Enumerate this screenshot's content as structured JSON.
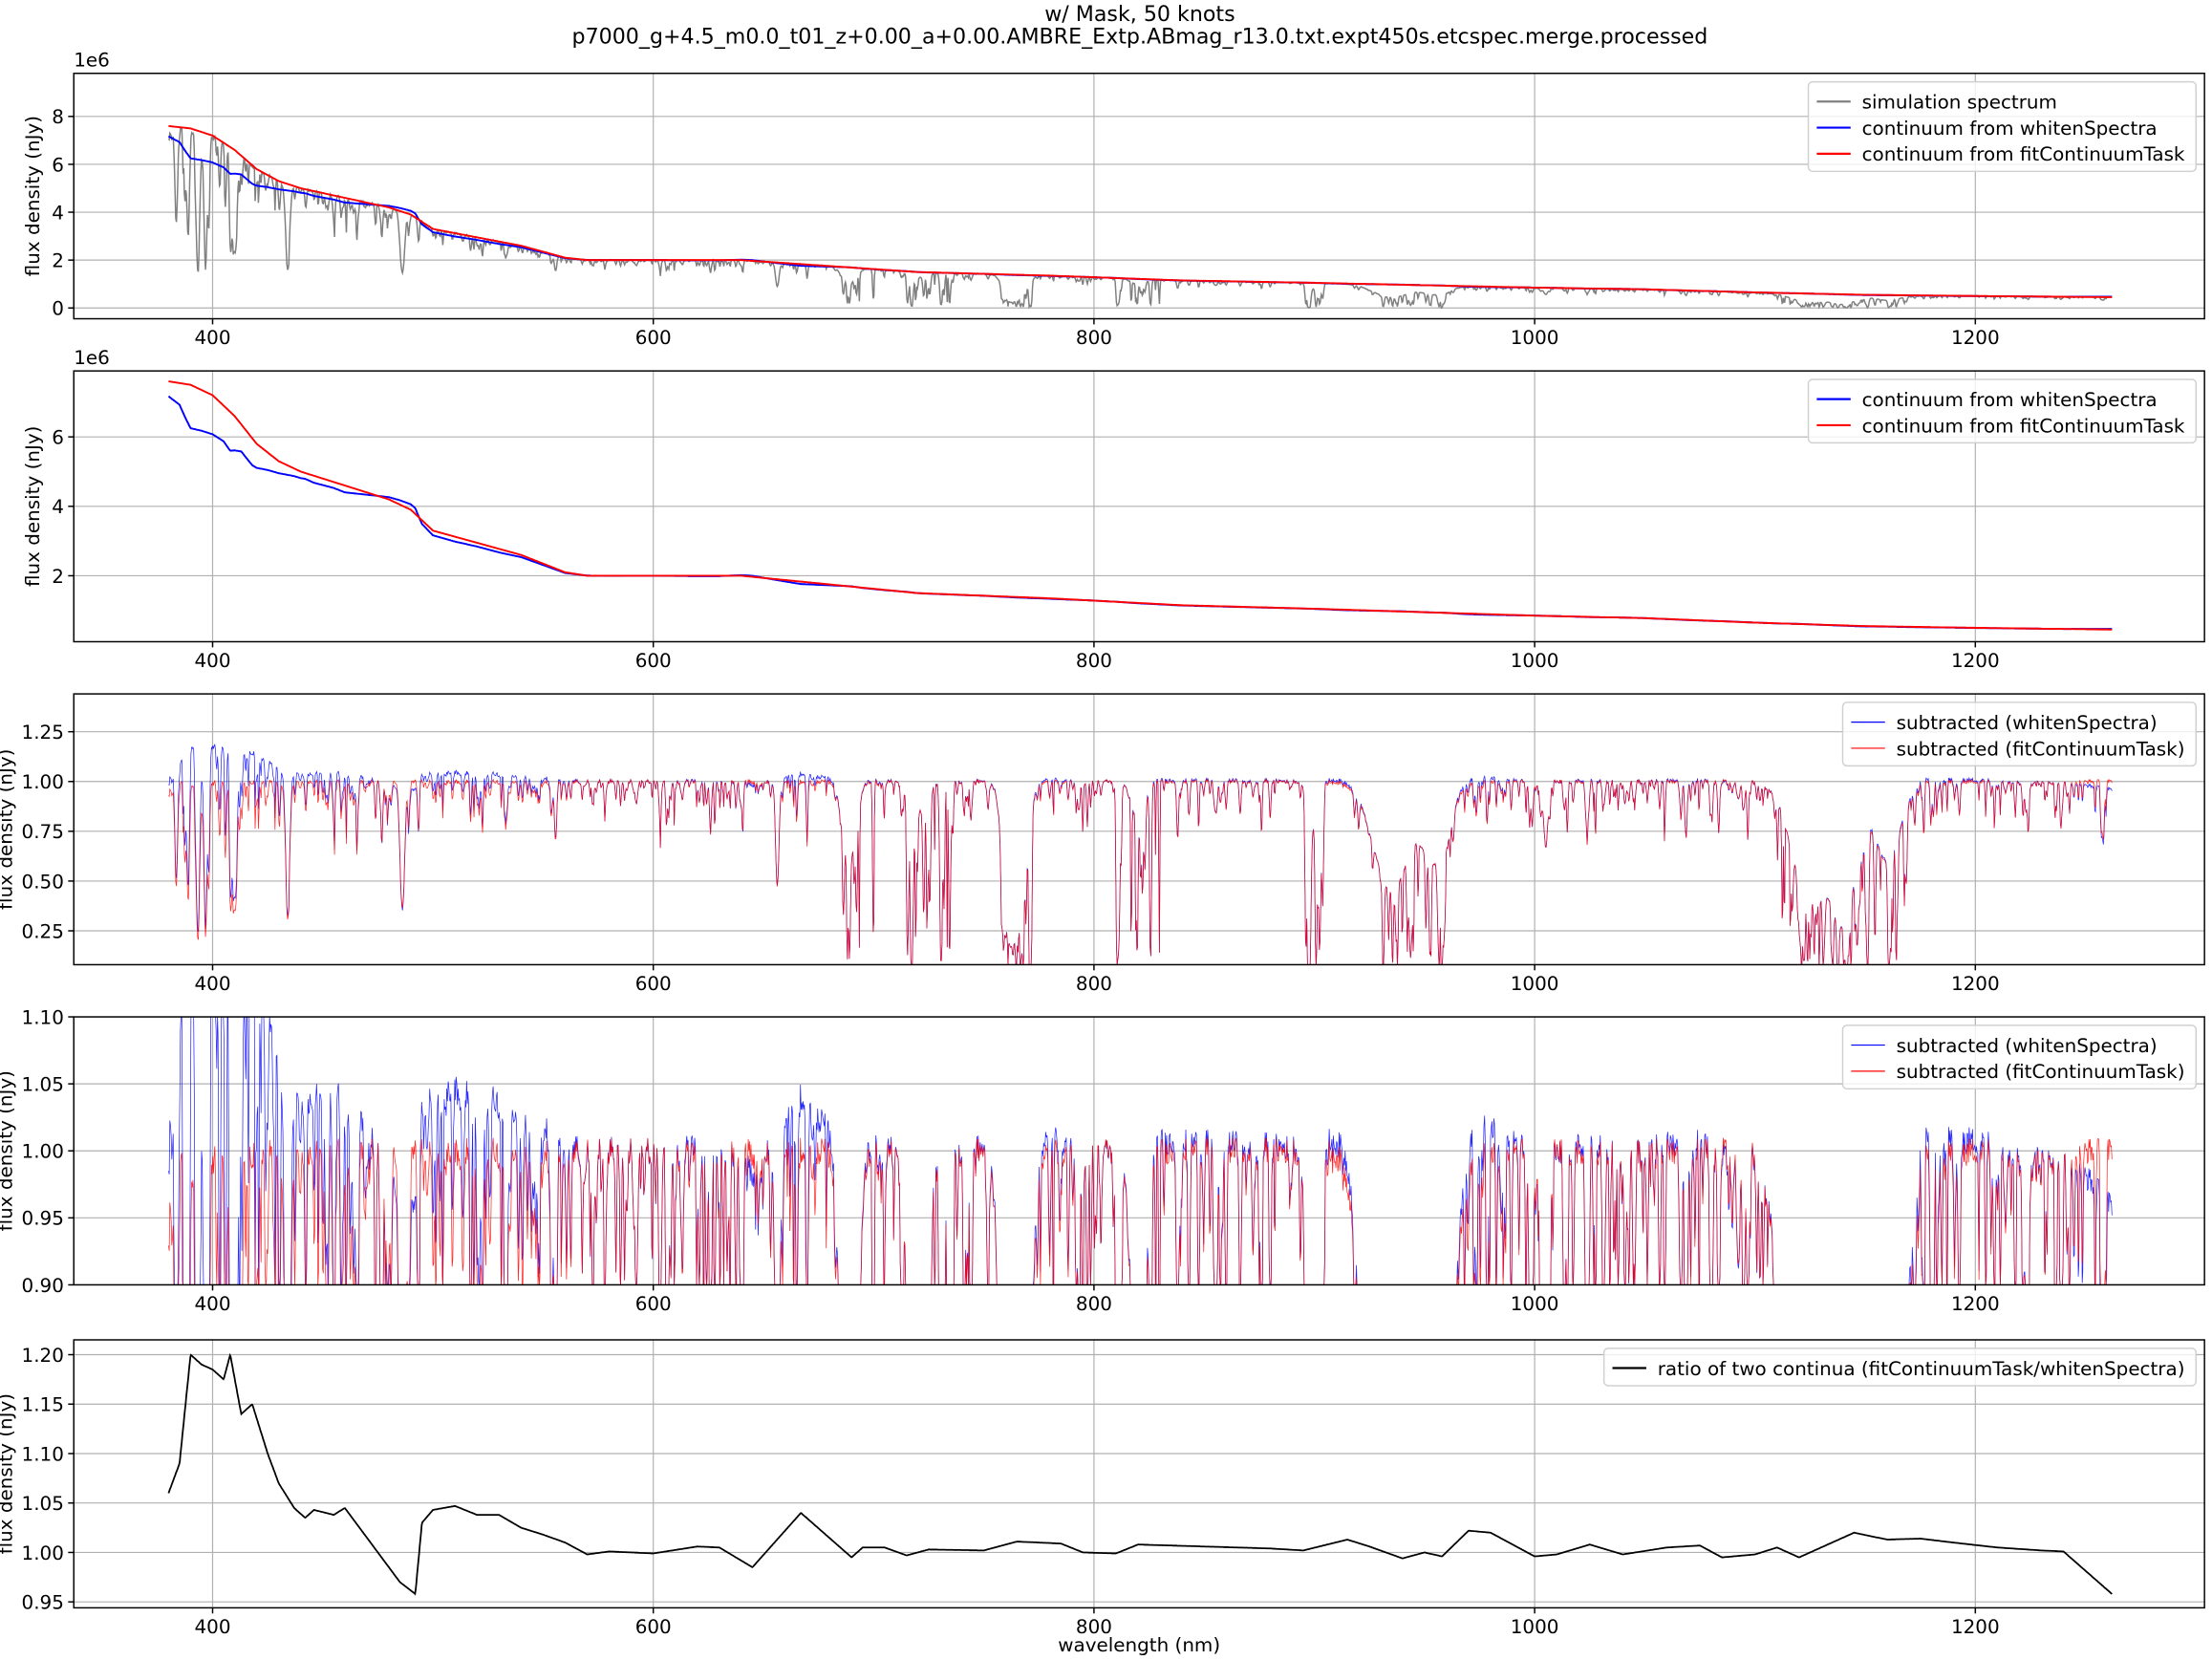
{
  "title": "w/ Mask, 50 knots",
  "subtitle": "p7000_g+4.5_m0.0_t01_z+0.00_a+0.00.AMBRE_Extp.ABmag_r13.0.txt.expt450s.etcspec.merge.processed",
  "colors": {
    "spectrum": "#808080",
    "whiten": "#0000ff",
    "fit": "#ff0000",
    "ratio": "#000000",
    "grid": "#b0b0b0"
  },
  "chart_data": [
    {
      "type": "line",
      "ylabel": "flux density (nJy)",
      "offset_label": "1e6",
      "xlim": [
        337,
        1304
      ],
      "ylim": [
        -0.45,
        9.8
      ],
      "xticks": [
        400,
        600,
        800,
        1000,
        1200
      ],
      "yticks": [
        0,
        2,
        4,
        6,
        8
      ],
      "grid": true,
      "legend": "top-right",
      "series": [
        {
          "name": "simulation spectrum",
          "key": "spectrum"
        },
        {
          "name": "continuum from whitenSpectra",
          "key": "whiten"
        },
        {
          "name": "continuum from fitContinuumTask",
          "key": "fit"
        }
      ]
    },
    {
      "type": "line",
      "ylabel": "flux density (nJy)",
      "offset_label": "1e6",
      "xlim": [
        337,
        1304
      ],
      "ylim": [
        0.1,
        7.9
      ],
      "xticks": [
        400,
        600,
        800,
        1000,
        1200
      ],
      "yticks": [
        2,
        4,
        6
      ],
      "grid": true,
      "legend": "top-right",
      "series": [
        {
          "name": "continuum from whitenSpectra",
          "key": "whiten"
        },
        {
          "name": "continuum from fitContinuumTask",
          "key": "fit"
        }
      ]
    },
    {
      "type": "line",
      "ylabel": "flux density (nJy)",
      "xlim": [
        337,
        1304
      ],
      "ylim": [
        0.08,
        1.44
      ],
      "xticks": [
        400,
        600,
        800,
        1000,
        1200
      ],
      "yticks": [
        "0.25",
        "0.50",
        "0.75",
        "1.00",
        "1.25"
      ],
      "grid": true,
      "legend": "top-right",
      "series": [
        {
          "name": "subtracted (whitenSpectra)",
          "key": "sub_whiten"
        },
        {
          "name": "subtracted (fitContinuumTask)",
          "key": "sub_fit"
        }
      ]
    },
    {
      "type": "line",
      "ylabel": "flux density (nJy)",
      "xlim": [
        337,
        1304
      ],
      "ylim": [
        0.9,
        1.1
      ],
      "xticks": [
        400,
        600,
        800,
        1000,
        1200
      ],
      "yticks": [
        "0.90",
        "0.95",
        "1.00",
        "1.05",
        "1.10"
      ],
      "grid": true,
      "legend": "top-right",
      "series": [
        {
          "name": "subtracted (whitenSpectra)",
          "key": "sub_whiten"
        },
        {
          "name": "subtracted (fitContinuumTask)",
          "key": "sub_fit"
        }
      ]
    },
    {
      "type": "line",
      "ylabel": "flux density (nJy)",
      "xlabel": "wavelength (nm)",
      "xlim": [
        337,
        1304
      ],
      "ylim": [
        0.944,
        1.215
      ],
      "xticks": [
        400,
        600,
        800,
        1000,
        1200
      ],
      "yticks": [
        "0.95",
        "1.00",
        "1.05",
        "1.10",
        "1.15",
        "1.20"
      ],
      "grid": true,
      "legend": "top-right",
      "series": [
        {
          "name": "ratio of two continua (fitContinuumTask/whitenSpectra)",
          "key": "ratio"
        }
      ]
    }
  ],
  "continuum_fit_1e6": [
    [
      380,
      7.6
    ],
    [
      390,
      7.5
    ],
    [
      400,
      7.2
    ],
    [
      410,
      6.6
    ],
    [
      420,
      5.8
    ],
    [
      430,
      5.3
    ],
    [
      440,
      5.0
    ],
    [
      460,
      4.6
    ],
    [
      480,
      4.2
    ],
    [
      490,
      3.9
    ],
    [
      500,
      3.3
    ],
    [
      520,
      2.95
    ],
    [
      540,
      2.6
    ],
    [
      560,
      2.1
    ],
    [
      570,
      2.0
    ],
    [
      600,
      2.0
    ],
    [
      640,
      2.0
    ],
    [
      680,
      1.75
    ],
    [
      720,
      1.5
    ],
    [
      780,
      1.35
    ],
    [
      840,
      1.15
    ],
    [
      900,
      1.05
    ],
    [
      950,
      0.95
    ],
    [
      1000,
      0.85
    ],
    [
      1050,
      0.78
    ],
    [
      1100,
      0.65
    ],
    [
      1150,
      0.55
    ],
    [
      1200,
      0.5
    ],
    [
      1262,
      0.45
    ]
  ],
  "ratio": [
    [
      380,
      1.06
    ],
    [
      385,
      1.09
    ],
    [
      390,
      1.2
    ],
    [
      395,
      1.19
    ],
    [
      400,
      1.185
    ],
    [
      405,
      1.175
    ],
    [
      408,
      1.2
    ],
    [
      413,
      1.14
    ],
    [
      418,
      1.15
    ],
    [
      425,
      1.1
    ],
    [
      430,
      1.07
    ],
    [
      437,
      1.045
    ],
    [
      442,
      1.035
    ],
    [
      446,
      1.043
    ],
    [
      455,
      1.038
    ],
    [
      460,
      1.045
    ],
    [
      465,
      1.03
    ],
    [
      475,
      1.0
    ],
    [
      485,
      0.97
    ],
    [
      492,
      0.958
    ],
    [
      495,
      1.03
    ],
    [
      500,
      1.043
    ],
    [
      510,
      1.047
    ],
    [
      520,
      1.038
    ],
    [
      530,
      1.038
    ],
    [
      540,
      1.025
    ],
    [
      550,
      1.018
    ],
    [
      560,
      1.01
    ],
    [
      570,
      0.998
    ],
    [
      580,
      1.001
    ],
    [
      600,
      0.999
    ],
    [
      620,
      1.006
    ],
    [
      630,
      1.005
    ],
    [
      645,
      0.985
    ],
    [
      667,
      1.04
    ],
    [
      690,
      0.995
    ],
    [
      695,
      1.005
    ],
    [
      705,
      1.005
    ],
    [
      715,
      0.997
    ],
    [
      725,
      1.003
    ],
    [
      750,
      1.002
    ],
    [
      765,
      1.011
    ],
    [
      785,
      1.009
    ],
    [
      795,
      1.0
    ],
    [
      810,
      0.999
    ],
    [
      820,
      1.008
    ],
    [
      850,
      1.006
    ],
    [
      880,
      1.004
    ],
    [
      895,
      1.002
    ],
    [
      915,
      1.013
    ],
    [
      925,
      1.006
    ],
    [
      940,
      0.994
    ],
    [
      950,
      1.0
    ],
    [
      958,
      0.996
    ],
    [
      970,
      1.022
    ],
    [
      980,
      1.02
    ],
    [
      1000,
      0.996
    ],
    [
      1010,
      0.998
    ],
    [
      1025,
      1.008
    ],
    [
      1040,
      0.998
    ],
    [
      1060,
      1.005
    ],
    [
      1075,
      1.007
    ],
    [
      1085,
      0.995
    ],
    [
      1100,
      0.998
    ],
    [
      1110,
      1.005
    ],
    [
      1120,
      0.995
    ],
    [
      1145,
      1.02
    ],
    [
      1160,
      1.013
    ],
    [
      1175,
      1.014
    ],
    [
      1190,
      1.01
    ],
    [
      1210,
      1.005
    ],
    [
      1230,
      1.002
    ],
    [
      1240,
      1.001
    ],
    [
      1262,
      0.958
    ]
  ],
  "absorption_features": [
    [
      383.5,
      0.5,
      0.6
    ],
    [
      388.9,
      0.6,
      0.6
    ],
    [
      393.4,
      0.8,
      0.7
    ],
    [
      396.8,
      0.78,
      0.7
    ],
    [
      410.2,
      0.62,
      0.8
    ],
    [
      434.0,
      0.63,
      0.9
    ],
    [
      486.1,
      0.63,
      1.0
    ],
    [
      656.3,
      0.52,
      0.8
    ],
    [
      689,
      0.4,
      3
    ],
    [
      720,
      0.15,
      4
    ],
    [
      762,
      0.8,
      3
    ],
    [
      767,
      0.6,
      3
    ],
    [
      820,
      0.2,
      3
    ],
    [
      899,
      0.25,
      2
    ],
    [
      935,
      0.55,
      8
    ],
    [
      955,
      0.4,
      6
    ],
    [
      1005,
      0.3,
      1
    ],
    [
      1125,
      0.6,
      8
    ],
    [
      1140,
      0.7,
      6
    ],
    [
      1160,
      0.4,
      6
    ]
  ]
}
